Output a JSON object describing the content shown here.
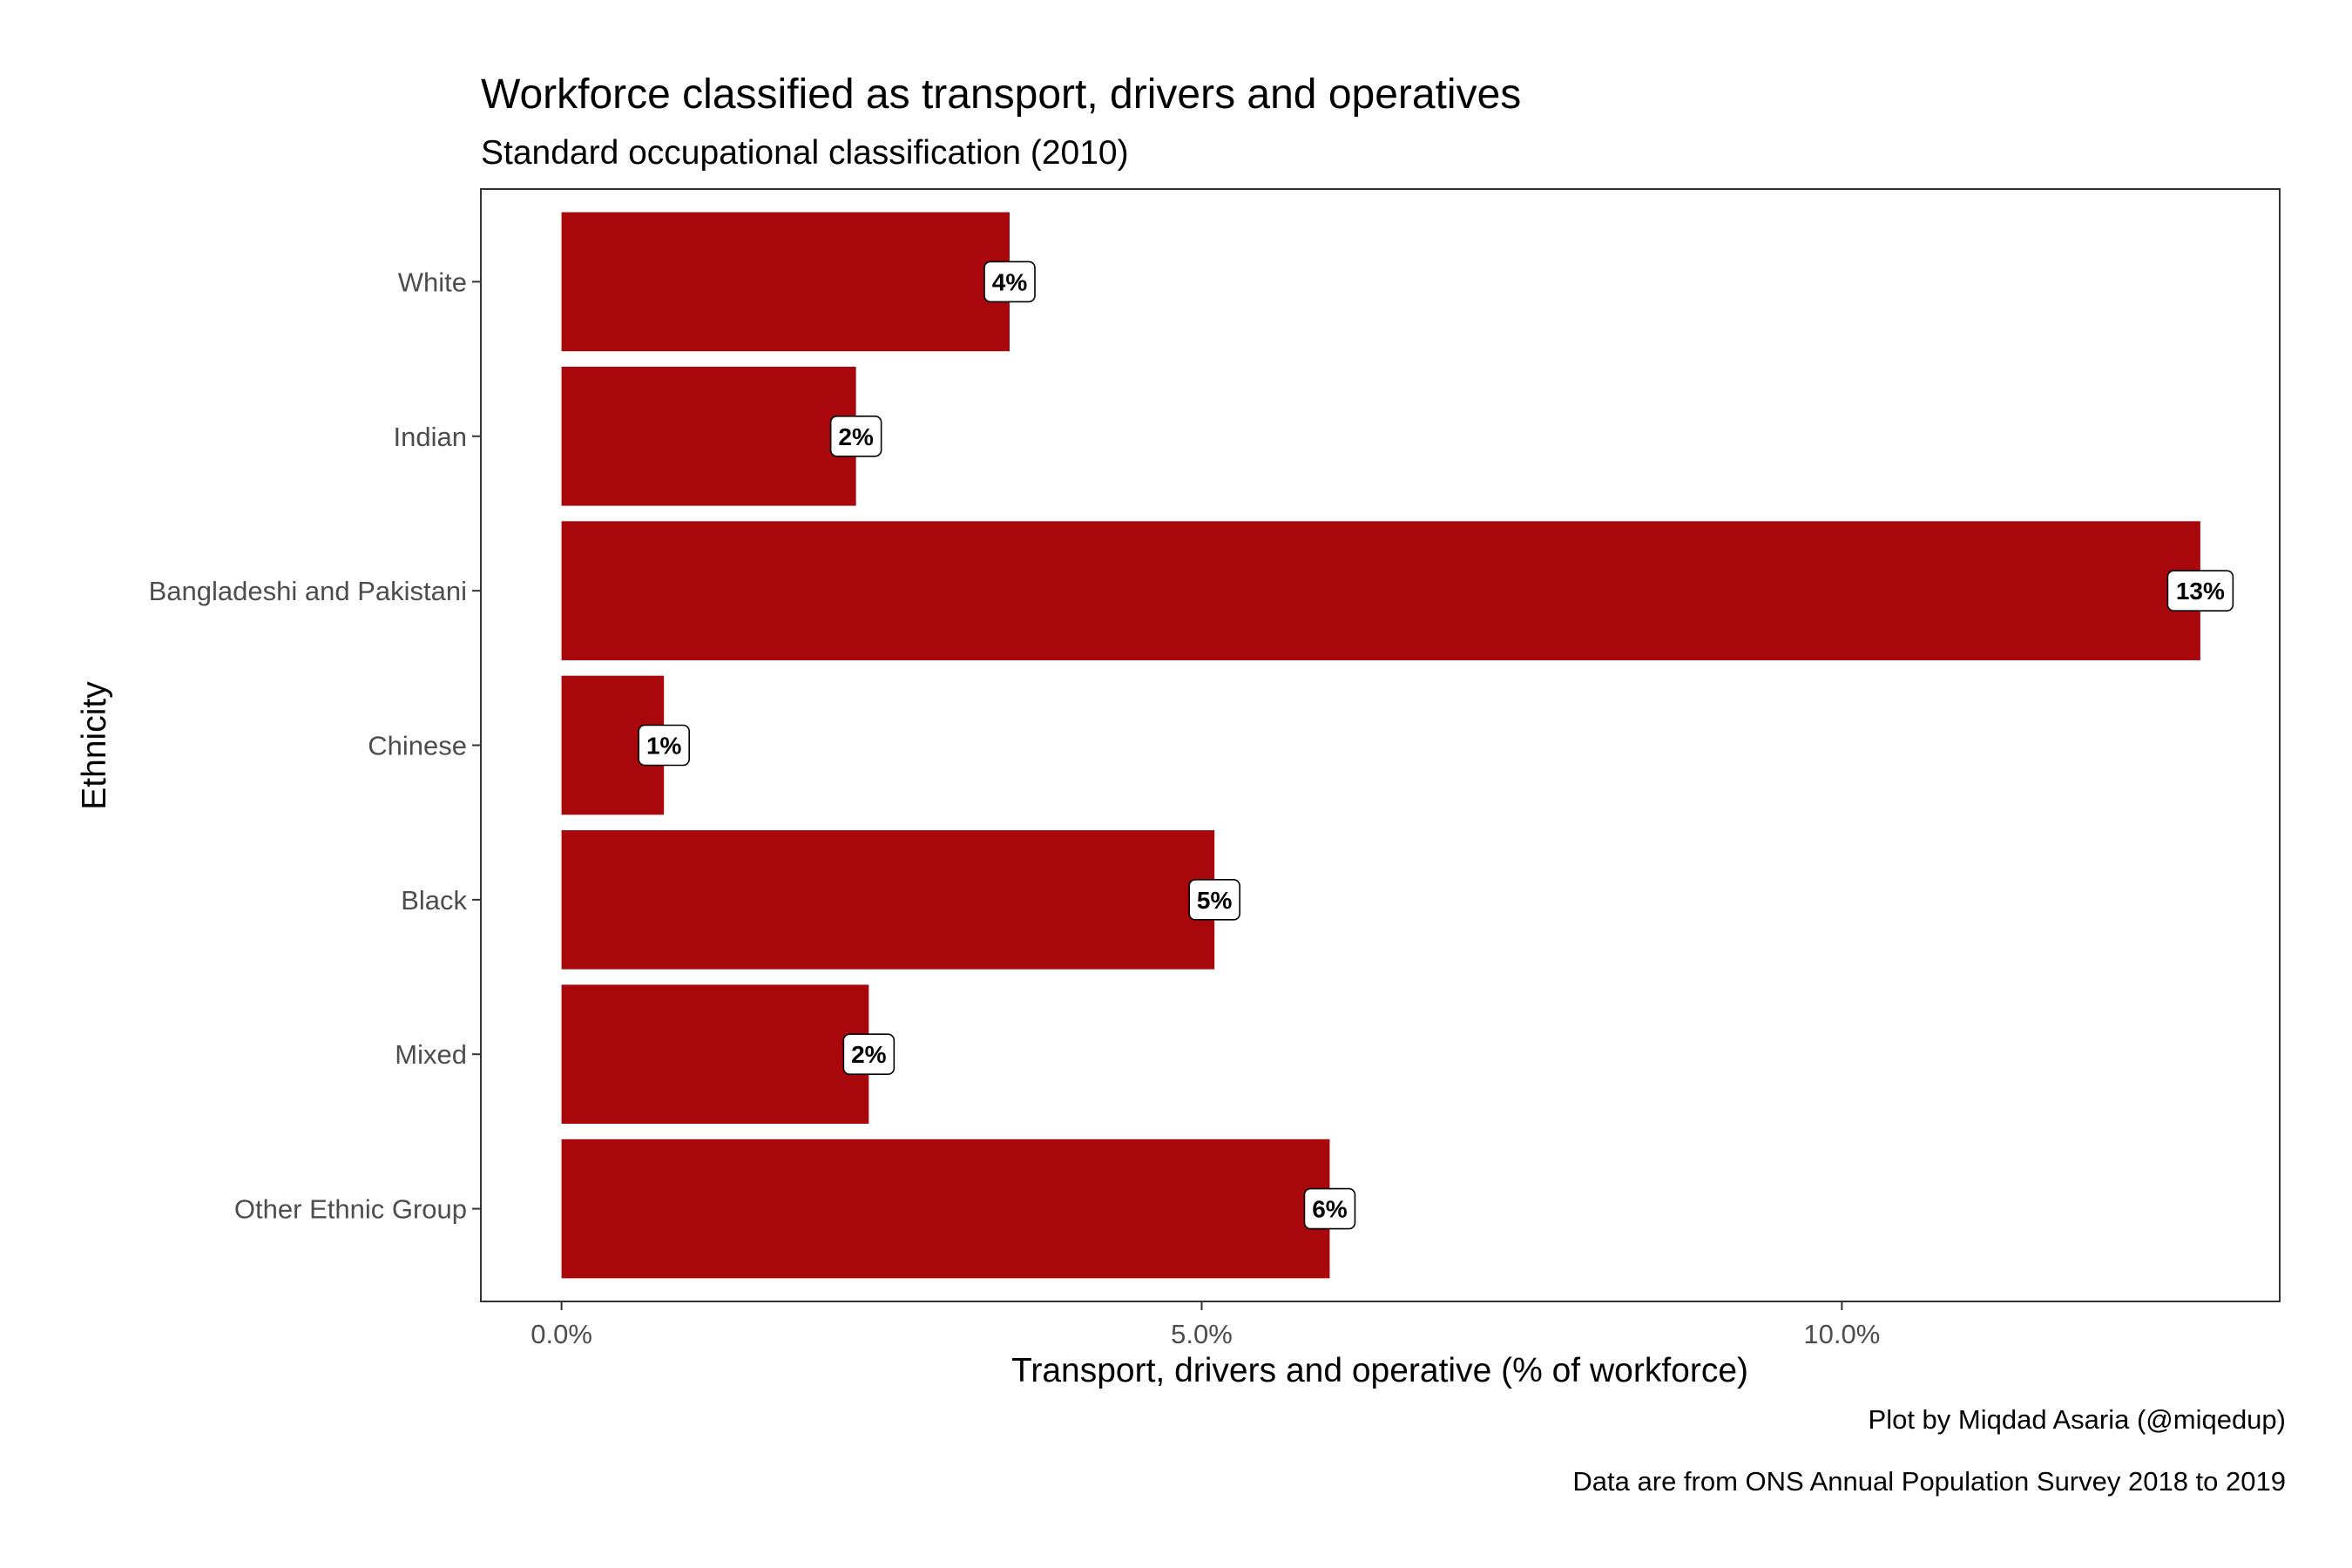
{
  "chart_data": {
    "type": "bar",
    "orientation": "horizontal",
    "title": "Workforce classified as transport, drivers and operatives",
    "subtitle": "Standard occupational classification (2010)",
    "xlabel": "Transport, drivers and operative (% of workforce)",
    "ylabel": "Ethnicity",
    "categories": [
      "White",
      "Indian",
      "Bangladeshi and Pakistani",
      "Chinese",
      "Black",
      "Mixed",
      "Other Ethnic Group"
    ],
    "values": [
      3.5,
      2.3,
      12.8,
      0.8,
      5.1,
      2.4,
      6.0
    ],
    "data_labels": [
      "4%",
      "2%",
      "13%",
      "1%",
      "5%",
      "2%",
      "6%"
    ],
    "xlim": [
      -0.63,
      13.42
    ],
    "x_ticks": [
      0,
      5,
      10
    ],
    "x_tick_labels": [
      "0.0%",
      "5.0%",
      "10.0%"
    ],
    "grid": false,
    "legend": "none",
    "bar_color": "#A8070B",
    "captions": [
      "Plot by Miqdad Asaria (@miqedup)",
      "Data are from ONS Annual Population Survey 2018 to 2019"
    ]
  }
}
